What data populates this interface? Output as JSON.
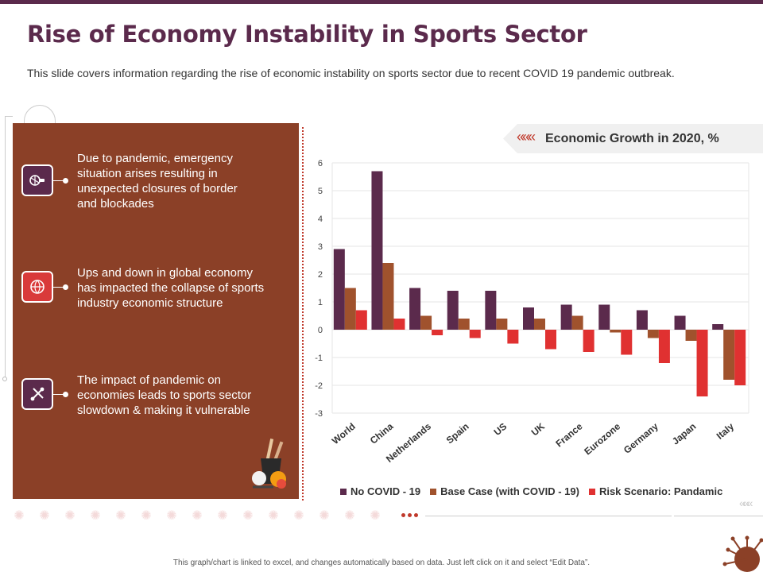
{
  "title": "Rise of Economy Instability in Sports Sector",
  "subtitle": "This slide covers information regarding the rise of economic instability on sports sector due to recent COVID 19 pandemic outbreak.",
  "panel": {
    "items": [
      {
        "text_lines": [
          "Due to pandemic, emergency",
          "situation arises resulting in",
          "unexpected closures of border",
          "and blockades"
        ],
        "icon": "sports-equipment-icon",
        "color": "#5b2a4c"
      },
      {
        "text_lines": [
          "Ups and down in global economy",
          "has impacted the collapse of sports",
          "industry economic structure"
        ],
        "icon": "globe-ball-icon",
        "color": "#d93a3a"
      },
      {
        "text_lines": [
          "The impact of pandemic on",
          "economies leads to sports sector",
          "slowdown & making it vulnerable"
        ],
        "icon": "sports-gear-icon",
        "color": "#5b2a4c"
      }
    ]
  },
  "chart_header": {
    "arrows": "«««",
    "title": "Economic Growth in 2020, %"
  },
  "chart_data": {
    "type": "bar",
    "title": "Economic Growth in 2020, %",
    "categories": [
      "World",
      "China",
      "Netherlands",
      "Spain",
      "US",
      "UK",
      "France",
      "Eurozone",
      "Germany",
      "Japan",
      "Italy"
    ],
    "series": [
      {
        "name": "No COVID - 19",
        "color": "#5b2a4c",
        "values": [
          2.9,
          5.7,
          1.5,
          1.4,
          1.4,
          0.8,
          0.9,
          0.9,
          0.7,
          0.5,
          0.2
        ]
      },
      {
        "name": "Base Case (with COVID - 19)",
        "color": "#a0522d",
        "values": [
          1.5,
          2.4,
          0.5,
          0.4,
          0.4,
          0.4,
          0.5,
          -0.1,
          -0.3,
          -0.4,
          -1.8
        ]
      },
      {
        "name": "Risk Scenario: Pandamic",
        "color": "#e03131",
        "values": [
          0.7,
          0.4,
          -0.2,
          -0.3,
          -0.5,
          -0.7,
          -0.8,
          -0.9,
          -1.2,
          -2.4,
          -2.0
        ]
      }
    ],
    "ylim": [
      -3,
      6
    ],
    "yticks": [
      "6",
      "5",
      "4",
      "3",
      "2",
      "1",
      "0",
      "-1",
      "-2",
      "-3"
    ],
    "grid": true,
    "legend_position": "bottom"
  },
  "footer": "This graph/chart is linked to excel, and changes automatically based on data. Just left click on it and select “Edit Data”."
}
